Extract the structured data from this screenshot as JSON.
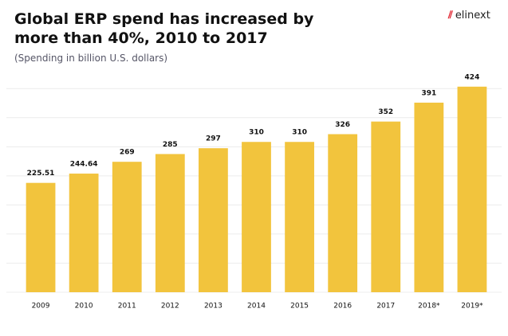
{
  "header": {
    "logo": "elinext"
  },
  "chart_data": {
    "type": "bar",
    "title": "Global ERP spend has increased by more than 40%, 2010 to 2017",
    "subtitle": "(Spending in billion U.S. dollars)",
    "categories": [
      "2009",
      "2010",
      "2011",
      "2012",
      "2013",
      "2014",
      "2015",
      "2016",
      "2017",
      "2018*",
      "2019*"
    ],
    "values": [
      225.51,
      244.64,
      269,
      285,
      297,
      310,
      310,
      326,
      352,
      391,
      424
    ],
    "color": "#f2c43d",
    "ylim": [
      0,
      450
    ],
    "yticks": [
      0,
      60,
      120,
      180,
      240,
      300,
      360,
      420
    ],
    "grid": true
  }
}
